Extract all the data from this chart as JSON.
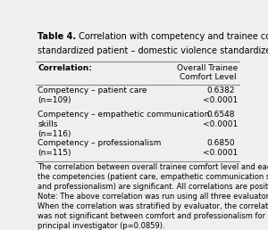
{
  "title_bold": "Table 4.",
  "title_line1_rest": " Correlation with competency and trainee comfort level",
  "title_line2": "standardized patient – domestic violence standardized patient",
  "col_header_left": "Correlation:",
  "col_header_right": "Overall Trainee\nComfort Level",
  "rows": [
    [
      "Competency – patient care\n(n=109)",
      "0.6382\n<0.0001"
    ],
    [
      "Competency – empathetic communication\nskills\n(n=116)",
      "0.6548\n<0.0001"
    ],
    [
      "Competency – professionalism\n(n=115)",
      "0.6850\n<0.0001"
    ]
  ],
  "footnote1": "The correlation between overall trainee comfort level and each of\nthe competencies (patient care, empathetic communication skill\nand professionalism) are significant. All correlations are positive.",
  "footnote2": "Note: The above correlation was run using all three evaluators.\nWhen the correlation was stratified by evaluator, the correlation\nwas not significant between comfort and professionalism for the\nprincipal investigator (p=0.0859).",
  "bg_color": "#f0efed",
  "text_color": "#000000",
  "line_color": "#888888",
  "font_size": 6.5,
  "title_font_size": 7.0
}
